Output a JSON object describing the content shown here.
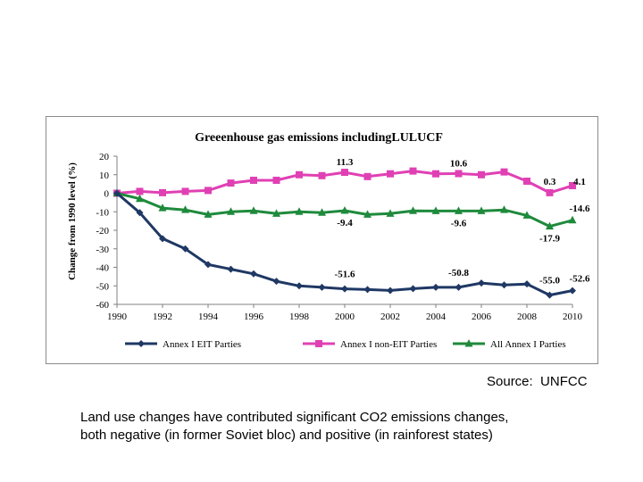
{
  "source_text": "Source:  UNFCC",
  "caption": {
    "line1": "Land use changes have contributed significant CO2 emissions changes,",
    "line2": "both negative (in former Soviet bloc) and positive (in rainforest states)"
  },
  "chart_data": {
    "type": "line",
    "title": "Greeenhouse gas emissions includingLULUCF",
    "xlabel": "",
    "ylabel": "Change from 1990 level (%)",
    "ylim": [
      -60,
      20
    ],
    "yticks": [
      20,
      10,
      0,
      -10,
      -20,
      -30,
      -40,
      -50,
      -60
    ],
    "xlim": [
      1990,
      2010
    ],
    "xticks": [
      1990,
      1992,
      1994,
      1996,
      1998,
      2000,
      2002,
      2004,
      2006,
      2008,
      2010
    ],
    "x": [
      1990,
      1991,
      1992,
      1993,
      1994,
      1995,
      1996,
      1997,
      1998,
      1999,
      2000,
      2001,
      2002,
      2003,
      2004,
      2005,
      2006,
      2007,
      2008,
      2009,
      2010
    ],
    "grid": false,
    "legend_position": "bottom",
    "series": [
      {
        "name": "Annex I EIT Parties",
        "color": "#1f3864",
        "marker": "diamond",
        "values": [
          0,
          -10.5,
          -24.5,
          -30,
          -38.5,
          -41,
          -43.5,
          -47.5,
          -50,
          -50.8,
          -51.6,
          -52,
          -52.5,
          -51.5,
          -50.8,
          -50.8,
          -48.5,
          -49.5,
          -49,
          -55.0,
          -52.6
        ]
      },
      {
        "name": "Annex I non-EIT Parties",
        "color": "#e040b4",
        "marker": "square",
        "values": [
          0,
          1,
          0.3,
          1,
          1.5,
          5.5,
          7,
          7,
          10,
          9.5,
          11.3,
          9,
          10.5,
          12,
          10.5,
          10.6,
          10,
          11.5,
          6.5,
          0.3,
          4.1
        ]
      },
      {
        "name": "All Annex I Parties",
        "color": "#1f8a3c",
        "marker": "triangle",
        "values": [
          0,
          -3,
          -8,
          -9,
          -11.5,
          -10,
          -9.5,
          -11,
          -10,
          -10.5,
          -9.4,
          -11.5,
          -11,
          -9.5,
          -9.6,
          -9.6,
          -9.6,
          -9,
          -12,
          -17.9,
          -14.6
        ]
      }
    ],
    "annotations": [
      {
        "text": "11.3",
        "x": 2000,
        "series": 1
      },
      {
        "text": "10.6",
        "x": 2005,
        "series": 1
      },
      {
        "text": "0.3",
        "x": 2009,
        "series": 1
      },
      {
        "text": "4.1",
        "x": 2010,
        "series": 1
      },
      {
        "text": "-9.4",
        "x": 2000,
        "series": 2
      },
      {
        "text": "-9.6",
        "x": 2005,
        "series": 2
      },
      {
        "text": "-17.9",
        "x": 2009,
        "series": 2
      },
      {
        "text": "-14.6",
        "x": 2010,
        "series": 2
      },
      {
        "text": "-51.6",
        "x": 2000,
        "series": 0
      },
      {
        "text": "-50.8",
        "x": 2005,
        "series": 0
      },
      {
        "text": "-55.0",
        "x": 2009,
        "series": 0
      },
      {
        "text": "-52.6",
        "x": 2010,
        "series": 0
      }
    ]
  }
}
